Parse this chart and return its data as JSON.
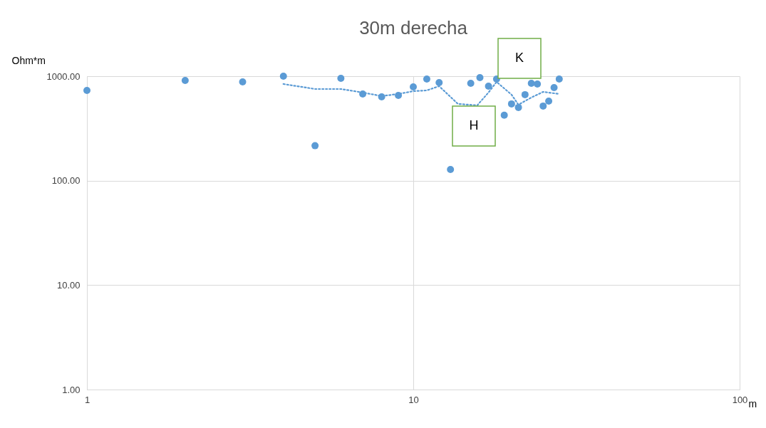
{
  "chart_data": {
    "type": "scatter",
    "title": "30m derecha",
    "xlabel": "m",
    "ylabel": "Ohm*m",
    "log": "xy",
    "grid": true,
    "marker": "circle",
    "xlim": [
      1,
      100
    ],
    "xticks": [
      1,
      10,
      100
    ],
    "ylim": [
      1,
      1000
    ],
    "yticks": [
      {
        "value": 1,
        "label": "1.00"
      },
      {
        "value": 10,
        "label": "10.00"
      },
      {
        "value": 100,
        "label": "100.00"
      },
      {
        "value": 1000,
        "label": "1000.00"
      }
    ],
    "series": [
      {
        "color": "#5b9bd5",
        "x": [
          1,
          2,
          3,
          4,
          5,
          6,
          7,
          8,
          9,
          10,
          11,
          12,
          13,
          15,
          16,
          17,
          18,
          19,
          20,
          21,
          22,
          23,
          24,
          25,
          26,
          27,
          28
        ],
        "values": [
          731,
          910,
          882,
          1000,
          216,
          953,
          676,
          635,
          655,
          791,
          939,
          869,
          128,
          855,
          969,
          803,
          939,
          423,
          543,
          502,
          666,
          855,
          842,
          518,
          578,
          778,
          939
        ]
      },
      {
        "type": "line",
        "marker": "none",
        "line_style": "dotted",
        "color": "#5b9bd5",
        "x": [
          4,
          5,
          6,
          7,
          8,
          9,
          10,
          11,
          12,
          13.7,
          15.7,
          17,
          18,
          20,
          21,
          23,
          25,
          28
        ],
        "values": [
          842,
          754,
          754,
          698,
          645,
          676,
          719,
          731,
          803,
          543,
          526,
          698,
          882,
          666,
          534,
          625,
          708,
          676
        ]
      }
    ],
    "annotations": [
      "K",
      "H"
    ]
  }
}
